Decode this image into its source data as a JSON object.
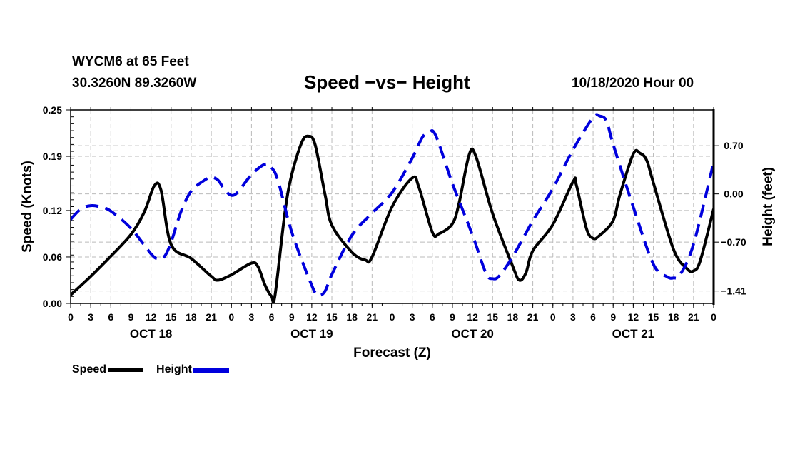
{
  "header": {
    "station": "WYCM6 at 65 Feet",
    "coords": "30.3260N 89.3260W",
    "title": "Speed −vs− Height",
    "datetime": "10/18/2020 Hour 00"
  },
  "legend": {
    "items": [
      {
        "label": "Speed",
        "style": "solid",
        "color": "#000000"
      },
      {
        "label": "Height",
        "style": "dashed",
        "color": "#0000dd"
      }
    ]
  },
  "chart_data": {
    "type": "line",
    "title": "Speed −vs− Height",
    "xlabel": "Forecast (Z)",
    "ylabel": "Speed (Knots)",
    "y2label": "Height (feet)",
    "xlim": [
      0,
      96
    ],
    "ylim": [
      0,
      0.25
    ],
    "y2lim": [
      -1.59,
      1.22
    ],
    "grid": true,
    "legend_position": "bottom-left",
    "x_ticks": [
      0,
      3,
      6,
      9,
      12,
      15,
      18,
      21,
      24,
      27,
      30,
      33,
      36,
      39,
      42,
      45,
      48,
      51,
      54,
      57,
      60,
      63,
      66,
      69,
      72,
      75,
      78,
      81,
      84,
      87,
      90,
      93,
      96
    ],
    "x_tick_labels": [
      "0",
      "3",
      "6",
      "9",
      "12",
      "15",
      "18",
      "21",
      "0",
      "3",
      "6",
      "9",
      "12",
      "15",
      "18",
      "21",
      "0",
      "3",
      "6",
      "9",
      "12",
      "15",
      "18",
      "21",
      "0",
      "3",
      "6",
      "9",
      "12",
      "15",
      "18",
      "21",
      "0"
    ],
    "day_labels": [
      {
        "label": "OCT 18",
        "at": 12
      },
      {
        "label": "OCT 19",
        "at": 36
      },
      {
        "label": "OCT 20",
        "at": 60
      },
      {
        "label": "OCT 21",
        "at": 84
      }
    ],
    "y_ticks": [
      0.0,
      0.06,
      0.12,
      0.19,
      0.25
    ],
    "y_tick_labels": [
      "0.00",
      "0.06",
      "0.12",
      "0.19",
      "0.25"
    ],
    "y2_ticks": [
      0.7,
      0.0,
      -0.7,
      -1.41
    ],
    "y2_tick_labels": [
      "0.70",
      "0.00",
      "−0.70",
      "−1.41"
    ],
    "series": [
      {
        "name": "Speed",
        "axis": "left",
        "color": "#000000",
        "dash": false,
        "x": [
          0,
          3,
          6,
          9,
          11,
          12.5,
          13.5,
          15,
          18,
          21,
          22,
          24,
          27,
          28,
          29,
          30,
          30.5,
          32,
          33,
          34.5,
          35.5,
          36.5,
          38,
          39,
          42,
          44,
          45,
          48,
          51,
          52,
          54,
          55,
          57,
          58,
          59.5,
          60.5,
          63,
          66,
          67,
          68,
          69,
          72,
          75,
          75.5,
          77,
          78,
          79,
          81,
          82,
          84,
          85,
          86,
          87,
          90,
          92,
          93,
          94,
          96
        ],
        "values": [
          0.011,
          0.035,
          0.061,
          0.089,
          0.118,
          0.152,
          0.146,
          0.076,
          0.058,
          0.035,
          0.03,
          0.037,
          0.052,
          0.047,
          0.024,
          0.009,
          0.01,
          0.118,
          0.166,
          0.208,
          0.216,
          0.205,
          0.14,
          0.101,
          0.066,
          0.056,
          0.06,
          0.125,
          0.162,
          0.15,
          0.092,
          0.09,
          0.103,
          0.13,
          0.192,
          0.19,
          0.116,
          0.048,
          0.03,
          0.04,
          0.068,
          0.102,
          0.157,
          0.153,
          0.097,
          0.084,
          0.088,
          0.107,
          0.14,
          0.193,
          0.194,
          0.185,
          0.156,
          0.07,
          0.045,
          0.042,
          0.055,
          0.122
        ]
      },
      {
        "name": "Height",
        "axis": "right",
        "color": "#0000dd",
        "dash": true,
        "x": [
          0,
          1.5,
          3,
          4.5,
          6,
          9,
          12,
          13,
          14,
          15,
          16.5,
          18,
          20,
          21,
          22,
          23,
          24,
          25,
          27,
          29,
          30,
          31,
          33,
          36,
          37,
          38,
          39,
          42,
          45,
          48,
          51,
          52.5,
          53.5,
          54.5,
          57,
          60,
          62,
          63,
          64,
          66,
          69,
          72,
          75,
          78,
          79,
          80,
          81,
          84,
          87,
          89,
          90,
          91,
          93,
          96
        ],
        "values": [
          -0.37,
          -0.22,
          -0.17,
          -0.19,
          -0.25,
          -0.5,
          -0.87,
          -0.94,
          -0.91,
          -0.7,
          -0.25,
          0.04,
          0.2,
          0.24,
          0.2,
          0.06,
          -0.02,
          0.03,
          0.28,
          0.43,
          0.38,
          0.18,
          -0.55,
          -1.33,
          -1.47,
          -1.41,
          -1.17,
          -0.6,
          -0.28,
          0.02,
          0.52,
          0.82,
          0.89,
          0.85,
          0.15,
          -0.6,
          -1.15,
          -1.23,
          -1.19,
          -0.91,
          -0.39,
          0.08,
          0.64,
          1.11,
          1.13,
          1.06,
          0.72,
          -0.19,
          -1.02,
          -1.2,
          -1.22,
          -1.17,
          -0.73,
          0.46
        ]
      }
    ]
  }
}
